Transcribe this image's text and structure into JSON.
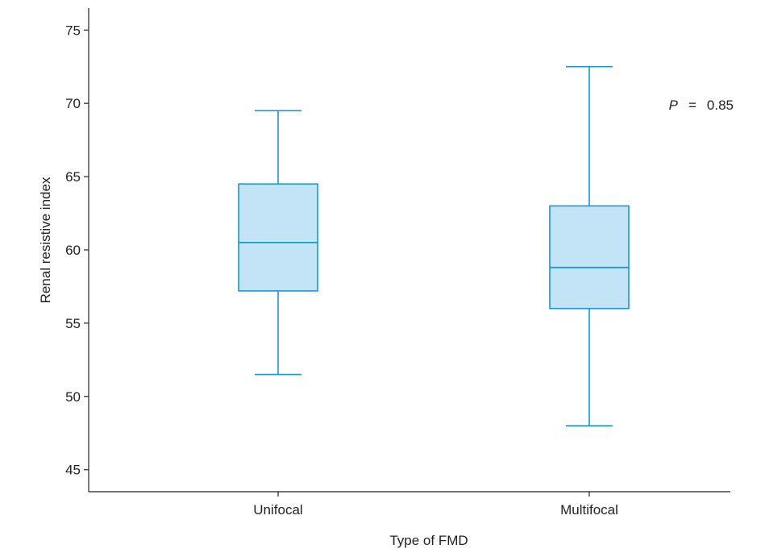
{
  "chart_data": {
    "type": "box",
    "xlabel": "Type of FMD",
    "ylabel": "Renal resistive index",
    "ylim": [
      43.5,
      76.5
    ],
    "yticks": [
      45,
      50,
      55,
      60,
      65,
      70,
      75
    ],
    "categories": [
      "Unifocal",
      "Multifocal"
    ],
    "boxes": [
      {
        "category": "Unifocal",
        "whisker_low": 51.5,
        "q1": 57.2,
        "median": 60.5,
        "q3": 64.5,
        "whisker_high": 69.5
      },
      {
        "category": "Multifocal",
        "whisker_low": 48.0,
        "q1": 56.0,
        "median": 58.8,
        "q3": 63.0,
        "whisker_high": 72.5
      }
    ],
    "annotation": {
      "p_label": "P",
      "equals": "=",
      "value": "0.85"
    },
    "colors": {
      "box_fill": "#c3e4f7",
      "box_stroke": "#1b96d2",
      "axis": "#222222"
    },
    "grid": false
  }
}
